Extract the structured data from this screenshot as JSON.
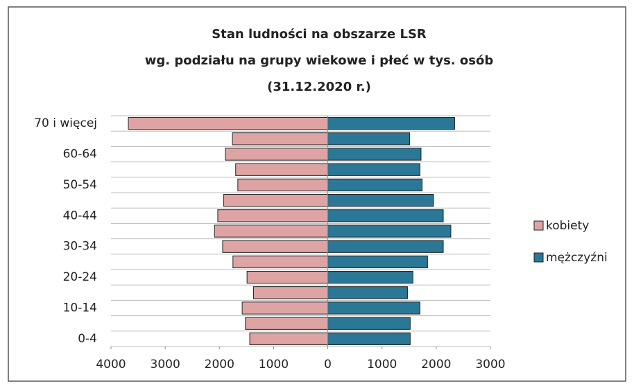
{
  "chart_data": {
    "type": "bar",
    "orientation": "horizontal",
    "title": [
      "Stan ludności na obszarze LSR",
      "wg. podziału na grupy wiekowe i płeć w tys. osób",
      "(31.12.2020 r.)"
    ],
    "categories": [
      "0-4",
      null,
      "10-14",
      null,
      "20-24",
      null,
      "30-34",
      null,
      "40-44",
      null,
      "50-54",
      null,
      "60-64",
      null,
      "70 i więcej"
    ],
    "series": [
      {
        "name": "kobiety",
        "color": "#dea4a4",
        "values": [
          -1440,
          -1520,
          -1580,
          -1370,
          -1490,
          -1750,
          -1940,
          -2090,
          -2030,
          -1920,
          -1660,
          -1700,
          -1890,
          -1760,
          -3680
        ]
      },
      {
        "name": "mężczyźni",
        "color": "#2a7895",
        "values": [
          1520,
          1520,
          1700,
          1470,
          1570,
          1840,
          2130,
          2270,
          2130,
          1950,
          1740,
          1700,
          1720,
          1510,
          2340
        ]
      }
    ],
    "xlim": [
      -4000,
      3000
    ],
    "xticks": [
      {
        "value": -4000,
        "label": "4000"
      },
      {
        "value": -3000,
        "label": "3000"
      },
      {
        "value": -2000,
        "label": "2000"
      },
      {
        "value": -1000,
        "label": "1000"
      },
      0,
      1000,
      2000,
      3000
    ],
    "legend": "right"
  }
}
